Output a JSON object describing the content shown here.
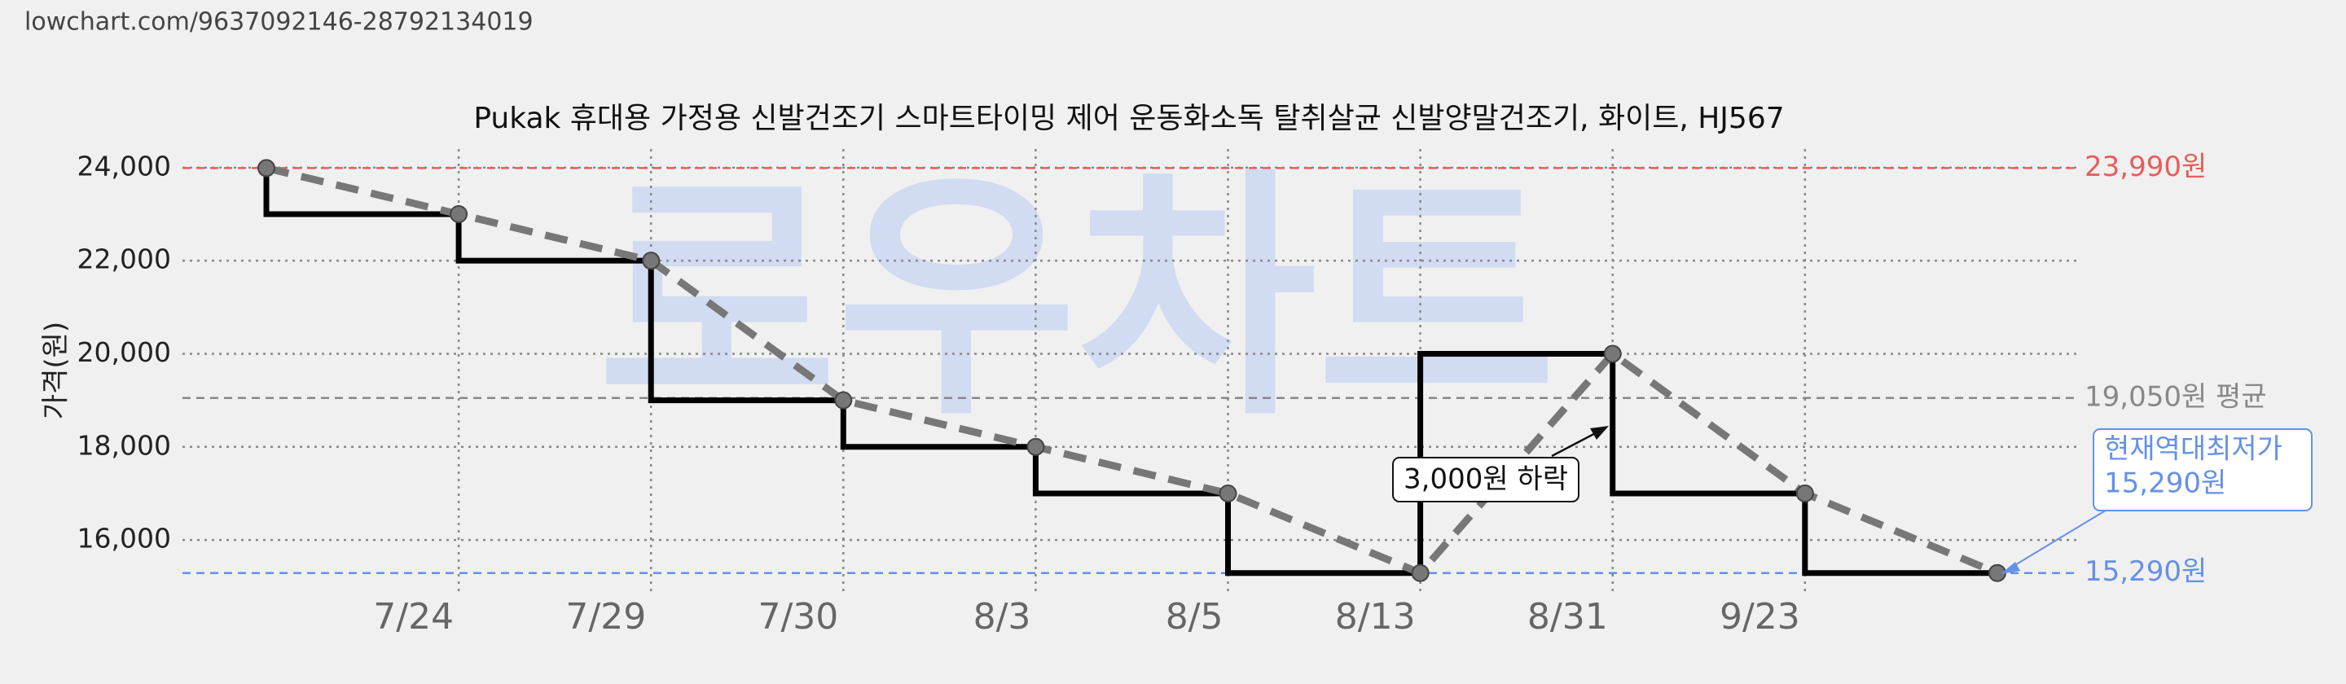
{
  "chart_data": {
    "type": "line",
    "url": "lowchart.com/9637092146-28792134019",
    "title": "Pukak 휴대용 가정용 신발건조기 스마트타이밍 제어 운동화소독 탈취살균 신발양말건조기, 화이트, HJ567",
    "watermark": "로우차트",
    "y_label": "가격(원)",
    "categories": [
      null,
      "7/24",
      "7/29",
      "7/30",
      "8/3",
      "8/5",
      "8/13",
      "8/31",
      "9/23",
      null
    ],
    "series": [
      {
        "color": "#777777",
        "step_color": "#000000",
        "values": [
          23990,
          23000,
          22000,
          19000,
          18000,
          17000,
          15290,
          20000,
          17000,
          15290
        ]
      }
    ],
    "ylim": [
      14900,
      24400
    ],
    "yticks": [
      {
        "value": 16000,
        "label": "16,000"
      },
      {
        "value": 18000,
        "label": "18,000"
      },
      {
        "value": 20000,
        "label": "20,000"
      },
      {
        "value": 22000,
        "label": "22,000"
      },
      {
        "value": 24000,
        "label": "24,000"
      }
    ],
    "grid": true,
    "reference_lines": [
      {
        "value": 23990,
        "label": "23,990원",
        "color": "#e85c5c"
      },
      {
        "value": 19050,
        "label": "19,050원 평균",
        "color": "#888888"
      },
      {
        "value": 15290,
        "label": "15,290원",
        "color": "#6490e8"
      }
    ],
    "annotation": "3,000원 하락",
    "current_low": [
      "현재역대최저가",
      "15,290원"
    ]
  }
}
